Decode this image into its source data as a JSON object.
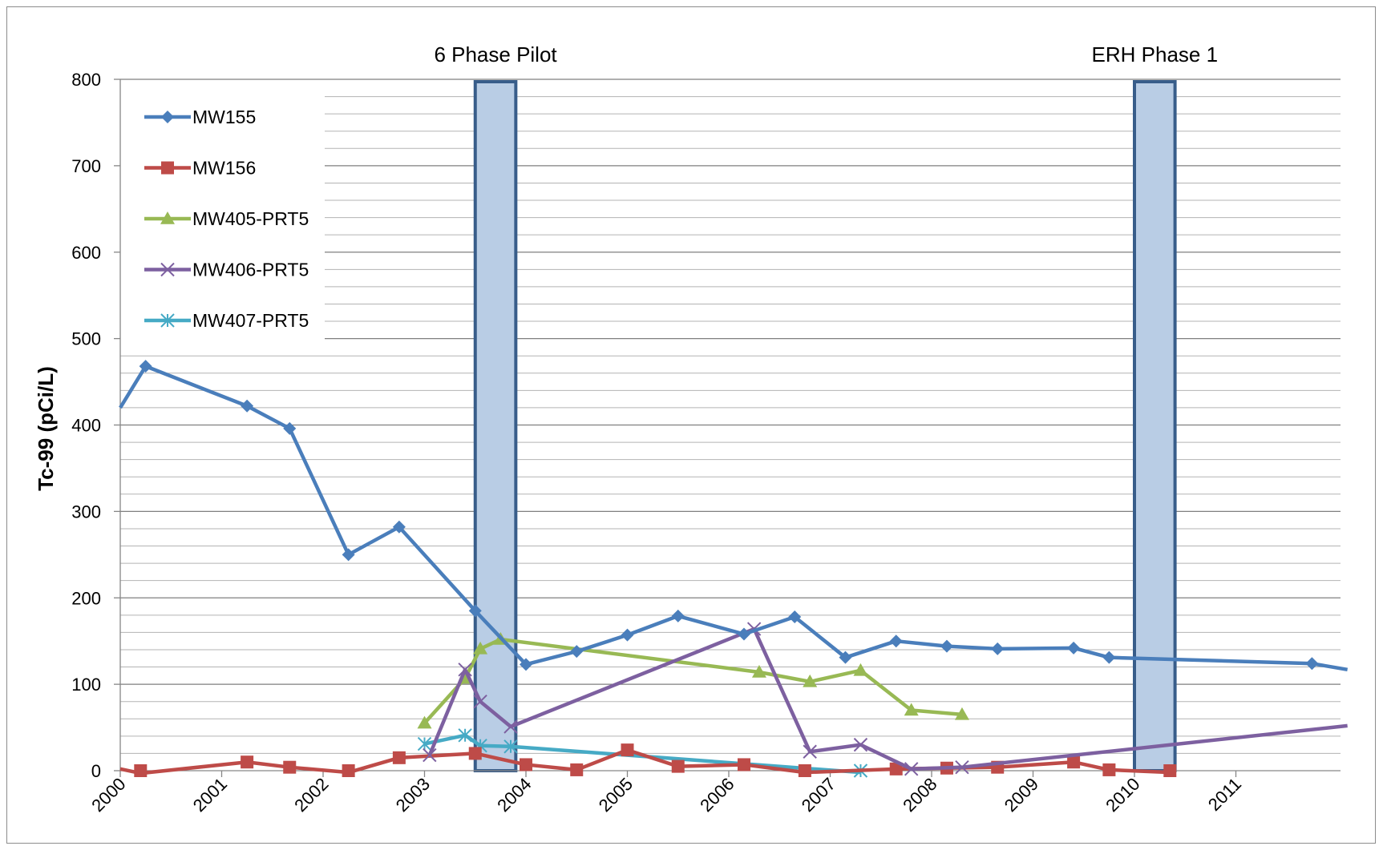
{
  "chart_data": {
    "type": "line",
    "title": "",
    "xlabel": "",
    "ylabel": "Tc-99 (pCi/L)",
    "ylim": [
      0,
      800
    ],
    "yticks": [
      0,
      100,
      200,
      300,
      400,
      500,
      600,
      700,
      800
    ],
    "xlim": [
      2000,
      2012.1
    ],
    "xticks": [
      "2000",
      "2001",
      "2002",
      "2003",
      "2004",
      "2005",
      "2006",
      "2007",
      "2008",
      "2009",
      "2010",
      "2011"
    ],
    "grid": "horizontal",
    "legend_position": "top-left",
    "colors": {
      "MW155": "#4a7ebb",
      "MW156": "#be4b48",
      "MW405-PRT5": "#98b954",
      "MW406-PRT5": "#7d60a0",
      "MW407-PRT5": "#46aac5",
      "band_fill": "#b9cde5",
      "band_stroke": "#385d8a"
    },
    "annotations": [
      {
        "label": "6 Phase Pilot",
        "x_start": 2003.5,
        "x_end": 2003.9
      },
      {
        "label": "ERH Phase 1",
        "x_start": 2010.0,
        "x_end": 2010.4
      }
    ],
    "series": [
      {
        "name": "MW155",
        "marker": "diamond",
        "points": [
          [
            2000.0,
            420
          ],
          [
            2000.25,
            468
          ],
          [
            2001.25,
            422
          ],
          [
            2001.67,
            396
          ],
          [
            2002.25,
            250
          ],
          [
            2002.75,
            282
          ],
          [
            2003.5,
            185
          ],
          [
            2004.0,
            123
          ],
          [
            2004.5,
            138
          ],
          [
            2005.0,
            157
          ],
          [
            2005.5,
            179
          ],
          [
            2006.15,
            158
          ],
          [
            2006.65,
            178
          ],
          [
            2007.15,
            131
          ],
          [
            2007.65,
            150
          ],
          [
            2008.15,
            144
          ],
          [
            2008.65,
            141
          ],
          [
            2009.4,
            142
          ],
          [
            2009.75,
            131
          ],
          [
            2011.75,
            124
          ],
          [
            2012.1,
            117
          ]
        ]
      },
      {
        "name": "MW156",
        "marker": "square",
        "points": [
          [
            2000.0,
            2
          ],
          [
            2000.2,
            -3
          ],
          [
            2001.25,
            10
          ],
          [
            2001.67,
            4
          ],
          [
            2002.25,
            -2
          ],
          [
            2002.75,
            15
          ],
          [
            2003.5,
            20
          ],
          [
            2004.0,
            7
          ],
          [
            2004.5,
            1
          ],
          [
            2005.0,
            24
          ],
          [
            2005.5,
            5
          ],
          [
            2006.15,
            7
          ],
          [
            2006.75,
            -2
          ],
          [
            2007.65,
            2
          ],
          [
            2008.15,
            3
          ],
          [
            2008.65,
            4
          ],
          [
            2009.4,
            10
          ],
          [
            2009.75,
            1
          ],
          [
            2010.35,
            -2
          ]
        ]
      },
      {
        "name": "MW405-PRT5",
        "marker": "triangle",
        "points": [
          [
            2003.0,
            55
          ],
          [
            2003.4,
            107
          ],
          [
            2003.55,
            141
          ],
          [
            2003.75,
            152
          ],
          [
            2006.3,
            114
          ],
          [
            2006.8,
            103
          ],
          [
            2007.3,
            116
          ],
          [
            2007.8,
            70
          ],
          [
            2008.3,
            65
          ]
        ]
      },
      {
        "name": "MW406-PRT5",
        "marker": "x",
        "points": [
          [
            2003.05,
            18
          ],
          [
            2003.4,
            117
          ],
          [
            2003.55,
            80
          ],
          [
            2003.85,
            51
          ],
          [
            2006.25,
            164
          ],
          [
            2006.8,
            22
          ],
          [
            2007.3,
            30
          ],
          [
            2007.8,
            2
          ],
          [
            2008.3,
            4
          ],
          [
            2012.1,
            52
          ]
        ]
      },
      {
        "name": "MW407-PRT5",
        "marker": "star",
        "points": [
          [
            2003.0,
            31
          ],
          [
            2003.4,
            41
          ],
          [
            2003.55,
            29
          ],
          [
            2003.85,
            28
          ],
          [
            2007.3,
            -2
          ]
        ]
      }
    ]
  }
}
